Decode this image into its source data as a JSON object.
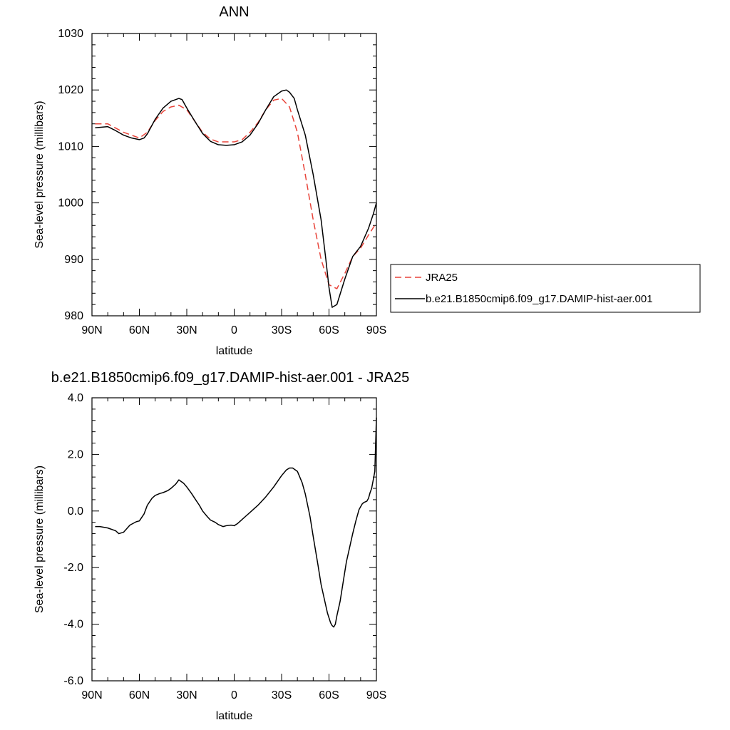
{
  "chart_data": [
    {
      "type": "line",
      "title": "ANN",
      "xlabel": "latitude",
      "ylabel": "Sea-level pressure (millibars)",
      "ylim": [
        980,
        1030
      ],
      "yticks": [
        980,
        990,
        1000,
        1010,
        1020,
        1030
      ],
      "xlim": [
        90,
        -90
      ],
      "xticks": [
        90,
        60,
        30,
        0,
        -30,
        -60,
        -90
      ],
      "xticklabels": [
        "90N",
        "60N",
        "30N",
        "0",
        "30S",
        "60S",
        "90S"
      ],
      "grid": false,
      "legend": "right",
      "series": [
        {
          "name": "JRA25",
          "color": "#e8443a",
          "dash": "dashed",
          "x": [
            88,
            80,
            70,
            60,
            55,
            50,
            45,
            40,
            35,
            30,
            25,
            20,
            15,
            10,
            5,
            0,
            -5,
            -10,
            -15,
            -20,
            -25,
            -30,
            -35,
            -40,
            -45,
            -50,
            -55,
            -60,
            -65,
            -70,
            -75,
            -80,
            -85,
            -90
          ],
          "y": [
            1014.0,
            1014.0,
            1012.5,
            1011.5,
            1012.5,
            1014.6,
            1016.2,
            1017.0,
            1017.3,
            1016.5,
            1014.5,
            1012.5,
            1011.3,
            1010.8,
            1010.8,
            1010.8,
            1011.2,
            1012.5,
            1014.2,
            1016.5,
            1018.2,
            1018.5,
            1017.0,
            1012.5,
            1005.0,
            997.0,
            990.0,
            985.5,
            984.8,
            987.5,
            990.5,
            992.0,
            994.3,
            996.5
          ]
        },
        {
          "name": "b.e21.B1850cmip6.f09_g17.DAMIP-hist-aer.001",
          "color": "#000000",
          "dash": "solid",
          "x": [
            88,
            80,
            75,
            70,
            65,
            60,
            57,
            55,
            50,
            45,
            40,
            35,
            33,
            30,
            25,
            20,
            15,
            10,
            5,
            0,
            -5,
            -10,
            -15,
            -20,
            -25,
            -30,
            -33,
            -35,
            -38,
            -40,
            -45,
            -50,
            -55,
            -58,
            -60,
            -62,
            -65,
            -70,
            -75,
            -80,
            -85,
            -88,
            -90
          ],
          "y": [
            1013.3,
            1013.5,
            1012.8,
            1012.0,
            1011.5,
            1011.2,
            1011.5,
            1012.2,
            1014.8,
            1016.8,
            1018.0,
            1018.5,
            1018.3,
            1016.8,
            1014.5,
            1012.3,
            1010.9,
            1010.3,
            1010.2,
            1010.3,
            1010.8,
            1012.0,
            1014.0,
            1016.5,
            1018.8,
            1019.8,
            1020.0,
            1019.6,
            1018.5,
            1016.5,
            1012.0,
            1005.0,
            997.0,
            990.0,
            985.0,
            981.5,
            982.0,
            986.5,
            990.5,
            992.3,
            995.5,
            998.0,
            1000.0
          ]
        }
      ]
    },
    {
      "type": "line",
      "title": "b.e21.B1850cmip6.f09_g17.DAMIP-hist-aer.001 - JRA25",
      "xlabel": "latitude",
      "ylabel": "Sea-level pressure (millibars)",
      "ylim": [
        -6.0,
        4.0
      ],
      "yticks": [
        -6.0,
        -4.0,
        -2.0,
        0.0,
        2.0,
        4.0
      ],
      "yticklabels": [
        "-6.0",
        "-4.0",
        "-2.0",
        "0.0",
        "2.0",
        "4.0"
      ],
      "xlim": [
        90,
        -90
      ],
      "xticks": [
        90,
        60,
        30,
        0,
        -30,
        -60,
        -90
      ],
      "xticklabels": [
        "90N",
        "60N",
        "30N",
        "0",
        "30S",
        "60S",
        "90S"
      ],
      "grid": false,
      "series": [
        {
          "color": "#000000",
          "dash": "solid",
          "x": [
            88,
            85,
            80,
            75,
            73,
            70,
            66,
            62,
            60,
            57,
            55,
            52,
            50,
            47,
            45,
            42,
            40,
            37,
            35,
            32,
            30,
            27,
            25,
            22,
            20,
            17,
            15,
            12,
            10,
            7,
            5,
            2,
            0,
            -2,
            -5,
            -8,
            -10,
            -15,
            -20,
            -25,
            -30,
            -33,
            -35,
            -37,
            -40,
            -43,
            -45,
            -48,
            -50,
            -53,
            -55,
            -57,
            -59,
            -61,
            -62,
            -63,
            -64,
            -65,
            -67,
            -69,
            -71,
            -73,
            -75,
            -77,
            -79,
            -80,
            -81,
            -82,
            -84,
            -85,
            -86,
            -87,
            -88,
            -89,
            -90
          ],
          "y": [
            -0.55,
            -0.55,
            -0.6,
            -0.7,
            -0.8,
            -0.75,
            -0.5,
            -0.38,
            -0.35,
            -0.1,
            0.2,
            0.45,
            0.55,
            0.62,
            0.65,
            0.72,
            0.8,
            0.95,
            1.1,
            0.98,
            0.85,
            0.62,
            0.45,
            0.2,
            0.0,
            -0.2,
            -0.32,
            -0.4,
            -0.48,
            -0.55,
            -0.52,
            -0.5,
            -0.52,
            -0.45,
            -0.3,
            -0.15,
            -0.05,
            0.2,
            0.5,
            0.85,
            1.25,
            1.45,
            1.52,
            1.52,
            1.4,
            1.0,
            0.6,
            -0.2,
            -0.9,
            -1.9,
            -2.6,
            -3.1,
            -3.6,
            -3.95,
            -4.05,
            -4.1,
            -4.0,
            -3.7,
            -3.2,
            -2.5,
            -1.8,
            -1.3,
            -0.8,
            -0.35,
            0.05,
            0.15,
            0.25,
            0.3,
            0.35,
            0.45,
            0.65,
            0.8,
            1.1,
            1.4,
            3.3
          ]
        }
      ]
    }
  ]
}
